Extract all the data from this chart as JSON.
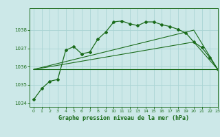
{
  "title": "Graphe pression niveau de la mer (hPa)",
  "bg_color": "#cce8e8",
  "grid_color": "#aad4d4",
  "line_color": "#1a6b1a",
  "xlim": [
    -0.5,
    23
  ],
  "ylim": [
    1033.8,
    1039.2
  ],
  "yticks": [
    1034,
    1035,
    1036,
    1037,
    1038
  ],
  "xticks": [
    0,
    1,
    2,
    3,
    4,
    5,
    6,
    7,
    8,
    9,
    10,
    11,
    12,
    13,
    14,
    15,
    16,
    17,
    18,
    19,
    20,
    21,
    22,
    23
  ],
  "series1_x": [
    0,
    1,
    2,
    3,
    4,
    5,
    6,
    7,
    8,
    9,
    10,
    11,
    12,
    13,
    14,
    15,
    16,
    17,
    18,
    19,
    20,
    21,
    22,
    23
  ],
  "series1_y": [
    1034.2,
    1034.8,
    1035.2,
    1035.3,
    1036.9,
    1037.1,
    1036.7,
    1036.8,
    1037.5,
    1037.9,
    1038.45,
    1038.5,
    1038.35,
    1038.25,
    1038.45,
    1038.45,
    1038.3,
    1038.2,
    1038.05,
    1037.85,
    1037.35,
    1037.05,
    1036.5,
    1035.85
  ],
  "series2_x": [
    0,
    23
  ],
  "series2_y": [
    1035.85,
    1035.85
  ],
  "series3_x": [
    0,
    20,
    23
  ],
  "series3_y": [
    1035.85,
    1037.35,
    1035.85
  ],
  "series4_x": [
    0,
    20,
    23
  ],
  "series4_y": [
    1035.85,
    1038.0,
    1035.85
  ]
}
